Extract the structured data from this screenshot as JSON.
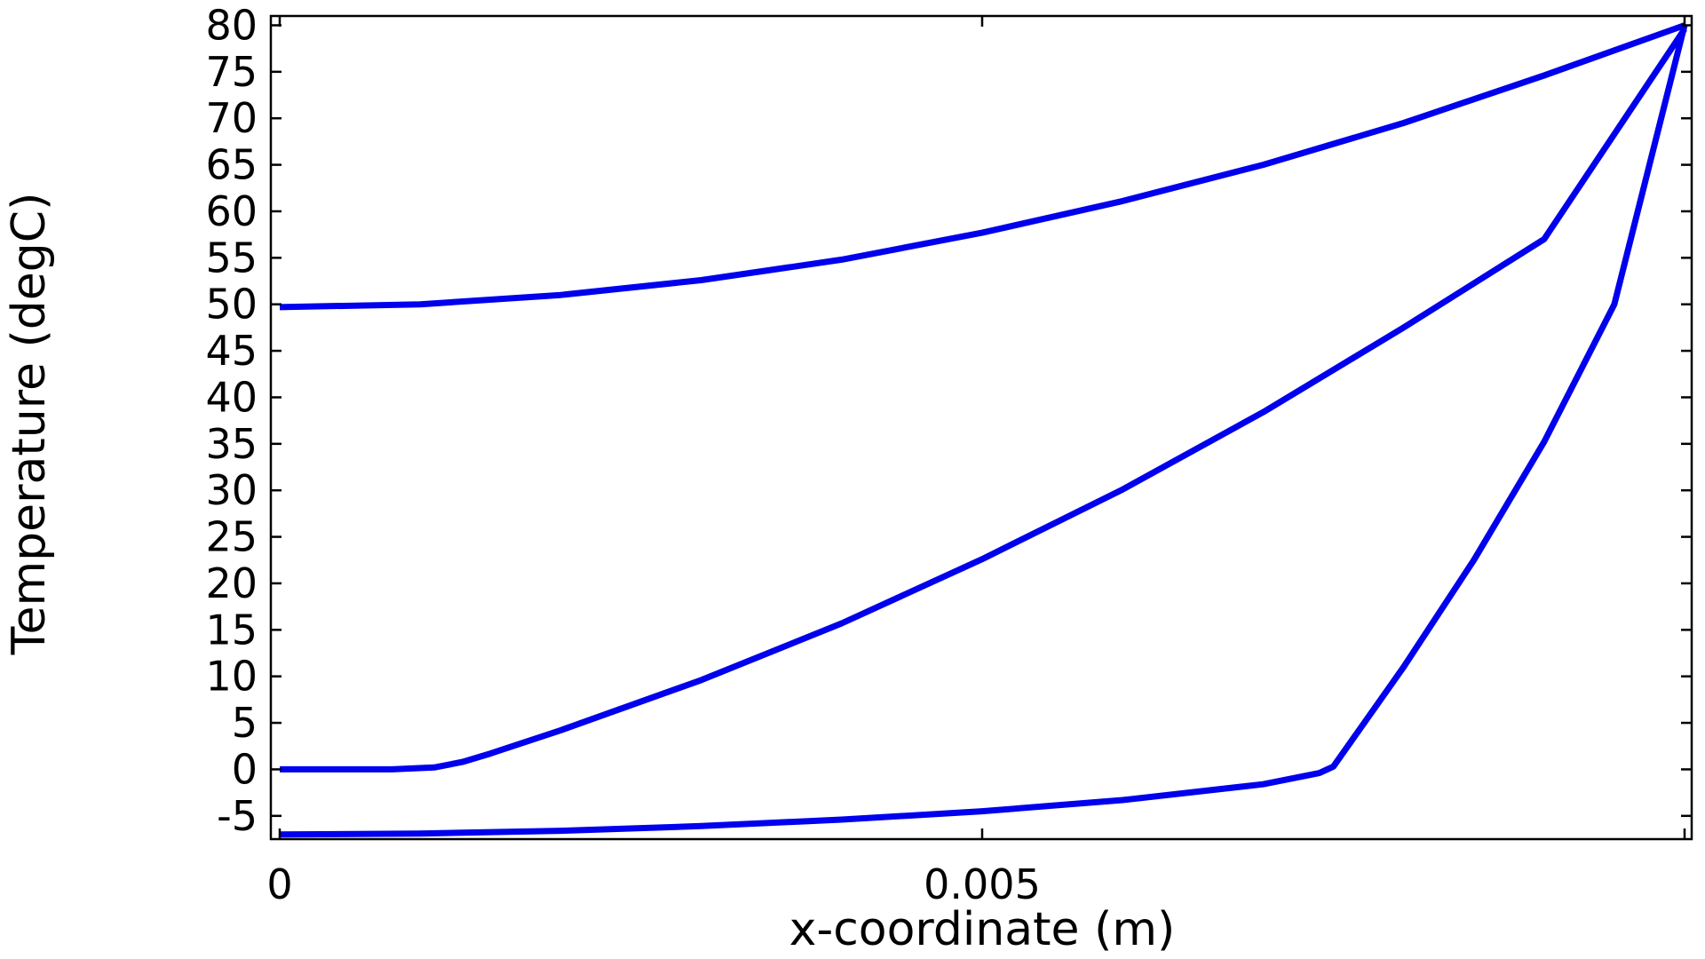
{
  "chart_data": {
    "type": "line",
    "title": "",
    "xlabel": "x-coordinate (m)",
    "ylabel": "Temperature (degC)",
    "xlim": [
      0,
      0.01
    ],
    "ylim": [
      -7.5,
      81
    ],
    "x_ticks": [
      0,
      0.005
    ],
    "x_tick_labels": [
      "0",
      "0.005"
    ],
    "y_ticks": [
      -5,
      0,
      5,
      10,
      15,
      20,
      25,
      30,
      35,
      40,
      45,
      50,
      55,
      60,
      65,
      70,
      75,
      80
    ],
    "y_tick_labels": [
      "-5",
      "0",
      "5",
      "10",
      "15",
      "20",
      "25",
      "30",
      "35",
      "40",
      "45",
      "50",
      "55",
      "60",
      "65",
      "70",
      "75",
      "80"
    ],
    "grid": false,
    "legend": "none",
    "line_color": "#0000ee",
    "series": [
      {
        "x": [
          0,
          0.001,
          0.002,
          0.003,
          0.004,
          0.005,
          0.006,
          0.007,
          0.008,
          0.009,
          0.01
        ],
        "y": [
          49.7,
          50.0,
          51.0,
          52.6,
          54.8,
          57.7,
          61.1,
          65.0,
          69.5,
          74.6,
          80
        ]
      },
      {
        "x": [
          0,
          0.0008,
          0.0011,
          0.0013,
          0.0015,
          0.002,
          0.003,
          0.004,
          0.005,
          0.006,
          0.007,
          0.008,
          0.009,
          0.01
        ],
        "y": [
          0,
          0,
          0.2,
          0.8,
          1.7,
          4.2,
          9.6,
          15.7,
          22.6,
          30.1,
          38.4,
          47.5,
          57.0,
          79.6
        ]
      },
      {
        "x": [
          0,
          0.001,
          0.002,
          0.003,
          0.004,
          0.005,
          0.006,
          0.007,
          0.0074,
          0.0075,
          0.008,
          0.0085,
          0.009,
          0.0095,
          0.01
        ],
        "y": [
          -7,
          -6.9,
          -6.6,
          -6.1,
          -5.4,
          -4.5,
          -3.3,
          -1.6,
          -0.4,
          0.3,
          11.0,
          22.5,
          35.2,
          50.0,
          80
        ]
      }
    ]
  }
}
